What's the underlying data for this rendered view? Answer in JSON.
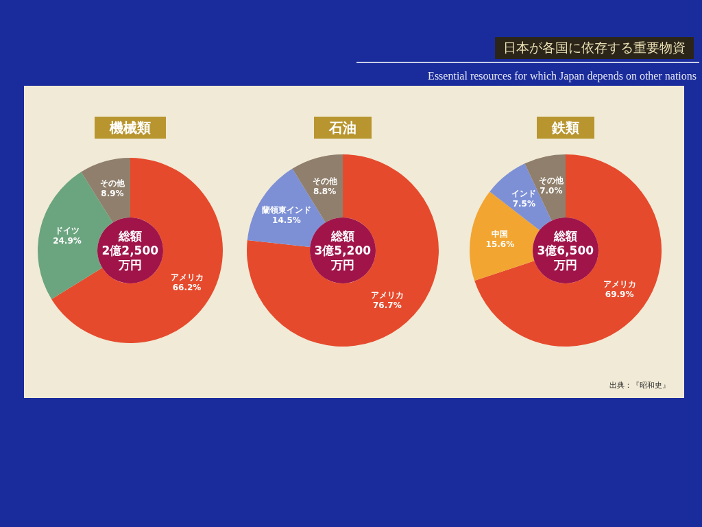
{
  "chart_data": [
    {
      "type": "other",
      "title": "日本が各国に依存する重要物資",
      "subtitle": "Essential resources for which Japan depends on other nations"
    },
    {
      "type": "donut",
      "title": "機械類",
      "categories": [
        "アメリカ",
        "ドイツ",
        "その他"
      ],
      "values": [
        66.2,
        24.9,
        8.9
      ],
      "value_labels": [
        "66.2%",
        "24.9%",
        "8.9%"
      ],
      "colors": [
        "#e64a2c",
        "#6ba57f",
        "#8f7f6c"
      ],
      "annotations": [
        "総額\n2億2,500\n万円"
      ]
    },
    {
      "type": "donut",
      "title": "石油",
      "categories": [
        "アメリカ",
        "蘭領東インド",
        "その他"
      ],
      "values": [
        76.7,
        14.5,
        8.8
      ],
      "value_labels": [
        "76.7%",
        "14.5%",
        "8.8%"
      ],
      "colors": [
        "#e64a2c",
        "#7d90d6",
        "#8f7f6c"
      ],
      "annotations": [
        "総額\n3億5,200\n万円"
      ]
    },
    {
      "type": "donut",
      "title": "鉄類",
      "categories": [
        "アメリカ",
        "中国",
        "インド",
        "その他"
      ],
      "values": [
        69.9,
        15.6,
        7.5,
        7.0
      ],
      "value_labels": [
        "69.9%",
        "15.6%",
        "7.5%",
        "7.0%"
      ],
      "colors": [
        "#e64a2c",
        "#f2a531",
        "#7d90d6",
        "#8f7f6c"
      ],
      "annotations": [
        "総額\n3億6,500\n万円",
        "出典：『昭和史』"
      ]
    }
  ]
}
